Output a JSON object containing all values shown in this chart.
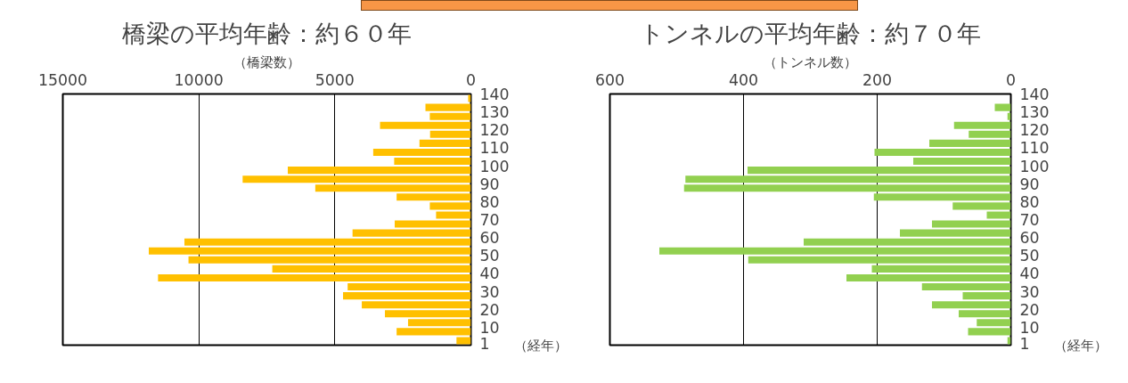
{
  "chart_data": [
    {
      "type": "bar",
      "orientation": "horizontal",
      "title": "橋梁の平均年齢：約６０年",
      "xlabel": "（橋梁数）",
      "ylabel": "（経年）",
      "color": "#ffc000",
      "grid": "x",
      "x": [
        2.5,
        7.5,
        12.5,
        17.5,
        22.5,
        27.5,
        32.5,
        37.5,
        42.5,
        47.5,
        52.5,
        57.5,
        62.5,
        67.5,
        72.5,
        77.5,
        82.5,
        87.5,
        92.5,
        97.5,
        102.5,
        107.5,
        112.5,
        117.5,
        122.5,
        127.5,
        132.5,
        137.5
      ],
      "values": [
        530,
        2730,
        2310,
        3160,
        4010,
        4700,
        4530,
        11500,
        7300,
        10380,
        11840,
        10530,
        4350,
        2800,
        1280,
        1510,
        2730,
        5720,
        8390,
        6730,
        2820,
        3590,
        1890,
        1500,
        3340,
        1510,
        1670,
        100
      ],
      "xlim": [
        15000,
        0
      ],
      "xticks": [
        15000,
        10000,
        5000,
        0
      ],
      "ylim": [
        0,
        140
      ],
      "yticks": [
        1,
        10,
        20,
        30,
        40,
        50,
        60,
        70,
        80,
        90,
        100,
        110,
        120,
        130,
        140
      ]
    },
    {
      "type": "bar",
      "orientation": "horizontal",
      "title": "トンネルの平均年齢：約７０年",
      "xlabel": "（トンネル数）",
      "ylabel": "（経年）",
      "color": "#92d050",
      "grid": "x",
      "x": [
        2.5,
        7.5,
        12.5,
        17.5,
        22.5,
        27.5,
        32.5,
        37.5,
        42.5,
        47.5,
        52.5,
        57.5,
        62.5,
        67.5,
        72.5,
        77.5,
        82.5,
        87.5,
        92.5,
        97.5,
        102.5,
        107.5,
        112.5,
        117.5,
        122.5,
        127.5,
        132.5,
        137.5
      ],
      "values": [
        5,
        64,
        51,
        78,
        118,
        72,
        133,
        246,
        208,
        393,
        526,
        310,
        166,
        118,
        36,
        87,
        205,
        489,
        487,
        394,
        146,
        204,
        122,
        63,
        85,
        5,
        24,
        0
      ],
      "xlim": [
        600,
        0
      ],
      "xticks": [
        600,
        400,
        200,
        0
      ],
      "ylim": [
        0,
        140
      ],
      "yticks": [
        1,
        10,
        20,
        30,
        40,
        50,
        60,
        70,
        80,
        90,
        100,
        110,
        120,
        130,
        140
      ]
    }
  ]
}
